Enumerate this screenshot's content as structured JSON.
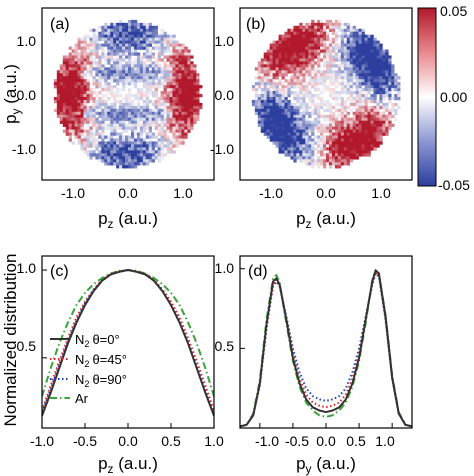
{
  "figure": {
    "panels": {
      "a": {
        "label": "(a)"
      },
      "b": {
        "label": "(b)"
      },
      "c": {
        "label": "(c)"
      },
      "d": {
        "label": "(d)"
      }
    },
    "ylabel_top": {
      "main": "p",
      "sub": "y",
      "unit": " (a.u.)"
    },
    "xlabel_a": {
      "main": "p",
      "sub": "z",
      "unit": " (a.u.)"
    },
    "xlabel_b": {
      "main": "p",
      "sub": "z",
      "unit": " (a.u.)"
    },
    "ylabel_bottom": "Normalized distribution",
    "xlabel_c": {
      "main": "p",
      "sub": "z",
      "unit": " (a.u.)"
    },
    "xlabel_d": {
      "main": "p",
      "sub": "y",
      "unit": " (a.u.)"
    },
    "colorbar": {
      "ticks": [
        "0.05",
        "0.00",
        "-0.05"
      ],
      "range": [
        -0.05,
        0.05
      ],
      "colors": {
        "max": "#b2182b",
        "mid": "#ffffff",
        "min": "#2c3e9e"
      }
    },
    "top_ticks": {
      "x": [
        "-1.0",
        "0.0",
        "1.0"
      ],
      "y": [
        "1.0",
        "0.0",
        "-1.0"
      ]
    },
    "bottom_ticks": {
      "c_x": [
        "-1.0",
        "-0.5",
        "0.0",
        "0.5",
        "1.0"
      ],
      "d_x": [
        "-1.0",
        "-0.5",
        "0.0",
        "0.5",
        "1.0"
      ],
      "y": [
        "1.0",
        "0.5"
      ]
    },
    "legend": [
      {
        "mol": "N",
        "sub": "2",
        "angle": "θ=0°",
        "color": "#333333",
        "style": "solid"
      },
      {
        "mol": "N",
        "sub": "2",
        "angle": "θ=45°",
        "color": "#d62728",
        "style": "dot"
      },
      {
        "mol": "N",
        "sub": "2",
        "angle": "θ=90°",
        "color": "#1f3fbf",
        "style": "dot"
      },
      {
        "mol": "Ar",
        "sub": "",
        "angle": "",
        "color": "#3aa33a",
        "style": "dashdot"
      }
    ]
  },
  "chart_data": [
    {
      "panel": "a",
      "type": "heatmap",
      "xlabel": "pz (a.u.)",
      "ylabel": "py (a.u.)",
      "xlim": [
        -1.5,
        1.5
      ],
      "ylim": [
        -1.5,
        1.5
      ],
      "description_values": "asymmetry within circle |p|<1.3; red at left/right edges, blue bands around py≈±0.9 and py≈±0.3, near-white center"
    },
    {
      "panel": "b",
      "type": "heatmap",
      "xlabel": "pz (a.u.)",
      "ylabel": "py (a.u.)",
      "xlim": [
        -1.5,
        1.5
      ],
      "ylim": [
        -1.5,
        1.5
      ],
      "description_values": "tilted pattern; blue on upper-right and lower-left, red on upper-left and lower-right"
    },
    {
      "panel": "c",
      "type": "line",
      "xlabel": "pz (a.u.)",
      "ylabel": "Normalized distribution",
      "xlim": [
        -1.0,
        1.0
      ],
      "ylim": [
        0.1,
        1.08
      ],
      "x": [
        -1.0,
        -0.9,
        -0.8,
        -0.7,
        -0.6,
        -0.5,
        -0.4,
        -0.3,
        -0.2,
        -0.1,
        0.0,
        0.1,
        0.2,
        0.3,
        0.4,
        0.5,
        0.6,
        0.7,
        0.8,
        0.9,
        1.0
      ],
      "series": [
        {
          "name": "N2 θ=0°",
          "values": [
            0.17,
            0.3,
            0.44,
            0.58,
            0.7,
            0.8,
            0.88,
            0.94,
            0.975,
            0.99,
            1.0,
            0.99,
            0.975,
            0.94,
            0.88,
            0.8,
            0.7,
            0.58,
            0.44,
            0.3,
            0.17
          ]
        },
        {
          "name": "N2 θ=45°",
          "values": [
            0.2,
            0.34,
            0.48,
            0.61,
            0.73,
            0.82,
            0.89,
            0.945,
            0.98,
            0.995,
            1.0,
            0.995,
            0.98,
            0.945,
            0.89,
            0.82,
            0.73,
            0.61,
            0.48,
            0.34,
            0.2
          ]
        },
        {
          "name": "N2 θ=90°",
          "values": [
            0.19,
            0.32,
            0.46,
            0.59,
            0.71,
            0.81,
            0.885,
            0.94,
            0.975,
            0.99,
            1.0,
            0.99,
            0.975,
            0.94,
            0.885,
            0.81,
            0.71,
            0.59,
            0.46,
            0.32,
            0.19
          ]
        },
        {
          "name": "Ar",
          "values": [
            0.28,
            0.44,
            0.58,
            0.7,
            0.8,
            0.87,
            0.92,
            0.955,
            0.98,
            0.995,
            1.0,
            0.995,
            0.98,
            0.955,
            0.92,
            0.87,
            0.8,
            0.7,
            0.58,
            0.44,
            0.28
          ]
        }
      ]
    },
    {
      "panel": "d",
      "type": "line",
      "xlabel": "py (a.u.)",
      "ylabel": "Normalized distribution",
      "xlim": [
        -1.3,
        1.3
      ],
      "ylim": [
        0.0,
        1.08
      ],
      "x": [
        -1.3,
        -1.2,
        -1.1,
        -1.0,
        -0.9,
        -0.8,
        -0.75,
        -0.7,
        -0.6,
        -0.5,
        -0.4,
        -0.3,
        -0.2,
        -0.1,
        0.0,
        0.1,
        0.2,
        0.3,
        0.4,
        0.5,
        0.6,
        0.7,
        0.75,
        0.8,
        0.9,
        1.0,
        1.1,
        1.2,
        1.3
      ],
      "series": [
        {
          "name": "N2 θ=0°",
          "values": [
            0.01,
            0.02,
            0.08,
            0.28,
            0.65,
            0.92,
            0.94,
            0.9,
            0.68,
            0.44,
            0.28,
            0.18,
            0.13,
            0.11,
            0.1,
            0.11,
            0.13,
            0.18,
            0.28,
            0.44,
            0.68,
            0.92,
            0.99,
            0.97,
            0.7,
            0.32,
            0.09,
            0.02,
            0.01
          ]
        },
        {
          "name": "N2 θ=45°",
          "values": [
            0.01,
            0.02,
            0.08,
            0.27,
            0.63,
            0.9,
            0.93,
            0.89,
            0.69,
            0.47,
            0.31,
            0.21,
            0.16,
            0.14,
            0.13,
            0.14,
            0.16,
            0.21,
            0.31,
            0.47,
            0.69,
            0.91,
            0.98,
            0.96,
            0.69,
            0.31,
            0.09,
            0.02,
            0.01
          ]
        },
        {
          "name": "N2 θ=90°",
          "values": [
            0.01,
            0.02,
            0.08,
            0.27,
            0.62,
            0.89,
            0.92,
            0.89,
            0.7,
            0.5,
            0.35,
            0.25,
            0.2,
            0.18,
            0.17,
            0.18,
            0.2,
            0.25,
            0.35,
            0.5,
            0.7,
            0.9,
            0.97,
            0.95,
            0.68,
            0.31,
            0.09,
            0.02,
            0.01
          ]
        },
        {
          "name": "Ar",
          "values": [
            0.01,
            0.02,
            0.09,
            0.3,
            0.68,
            0.94,
            0.96,
            0.91,
            0.66,
            0.42,
            0.26,
            0.16,
            0.11,
            0.08,
            0.07,
            0.08,
            0.11,
            0.16,
            0.26,
            0.42,
            0.66,
            0.93,
            0.99,
            0.97,
            0.71,
            0.33,
            0.1,
            0.02,
            0.01
          ]
        }
      ]
    }
  ]
}
